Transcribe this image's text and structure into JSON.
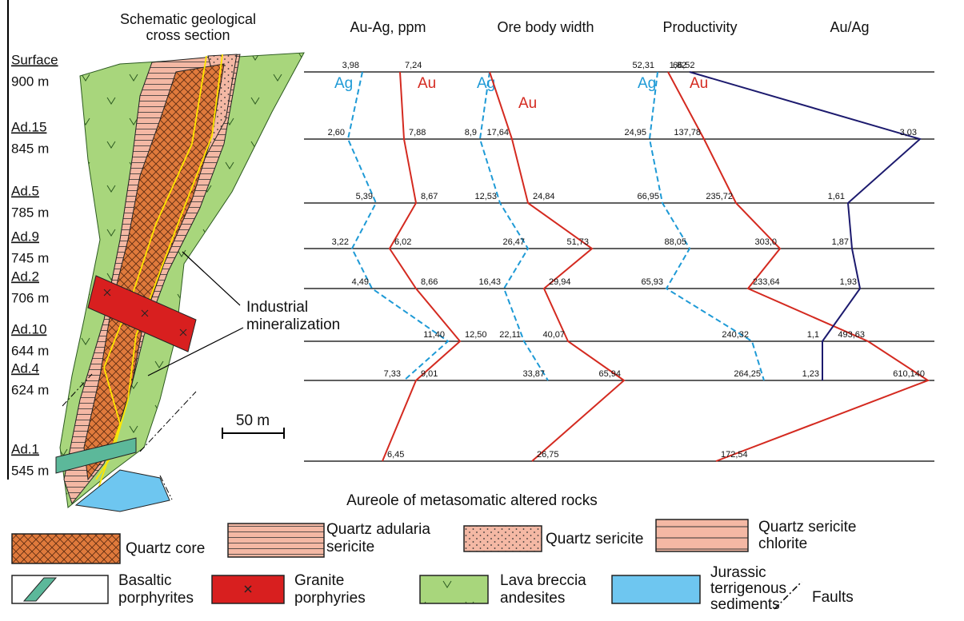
{
  "cross_section": {
    "title_lines": [
      "Schematic geological",
      "cross section"
    ],
    "annotation_lines": [
      "Industrial",
      "mineralization"
    ],
    "scale": "50 m"
  },
  "levels": [
    {
      "name": "Surface",
      "depth": "900 m"
    },
    {
      "name": "Ad.15",
      "depth": "845 m"
    },
    {
      "name": "Ad.5",
      "depth": "785 m"
    },
    {
      "name": "Ad.9",
      "depth": "745 m"
    },
    {
      "name": "Ad.2",
      "depth": "706 m"
    },
    {
      "name": "Ad.10",
      "depth": "644 m"
    },
    {
      "name": "Ad.4",
      "depth": "624 m"
    },
    {
      "name": "Ad.1",
      "depth": "545 m"
    }
  ],
  "columns": [
    {
      "title": "Au-Ag, ppm",
      "series": [
        {
          "name": "Ag",
          "color": "#1e9ad6",
          "labels": [
            "3,98",
            "2,60",
            "5,39",
            "3,22",
            "4,49",
            "11,40",
            "7,33"
          ]
        },
        {
          "name": "Au",
          "color": "#d42a20",
          "labels": [
            "7,24",
            "7,88",
            "8,67",
            "6,02",
            "8,66",
            "12,50",
            "9,01",
            "6,45"
          ]
        }
      ]
    },
    {
      "title": "Ore body width",
      "series": [
        {
          "name": "Ag",
          "color": "#1e9ad6",
          "labels": [
            null,
            "8,9",
            "12,53",
            "26,47",
            "16,43",
            "22,11",
            "33,87"
          ]
        },
        {
          "name": "Au",
          "color": "#d42a20",
          "labels": [
            null,
            "17,64",
            "24,84",
            "51,73",
            "29,94",
            "40,07",
            "65,94",
            "26,75"
          ]
        }
      ]
    },
    {
      "title": "Productivity",
      "series": [
        {
          "name": "Ag",
          "color": "#1e9ad6",
          "labels": [
            "52,31",
            "24,95",
            "66,95",
            "88,05",
            "65,93",
            "240,32",
            "264,25"
          ]
        },
        {
          "name": "Au",
          "color": "#d42a20",
          "labels": [
            "66,52",
            "137,78",
            "235,72",
            "303,0",
            "233,64",
            "493,63",
            "610,140",
            "172,54"
          ]
        }
      ]
    },
    {
      "title": "Au/Ag",
      "series": [
        {
          "color": "#1c1a6e",
          "labels": [
            "1,82",
            "3,03",
            "1,61",
            "1,87",
            "1,93",
            "1,1",
            "1,23"
          ]
        }
      ]
    }
  ],
  "legend": {
    "title": "Aureole of metasomatic altered rocks",
    "items": [
      {
        "lines": [
          "Quartz core"
        ]
      },
      {
        "lines": [
          "Quartz adularia",
          "sericite"
        ]
      },
      {
        "lines": [
          "Quartz sericite"
        ]
      },
      {
        "lines": [
          "Quartz sericite",
          "chlorite"
        ]
      },
      {
        "lines": [
          "Basaltic",
          "porphyrites"
        ]
      },
      {
        "lines": [
          "Granite",
          "porphyries"
        ]
      },
      {
        "lines": [
          "Lava breccia",
          "andesites"
        ]
      },
      {
        "lines": [
          "Jurassic",
          "terrigenous",
          "sediments"
        ]
      },
      {
        "lines": [
          "Faults"
        ]
      }
    ]
  }
}
